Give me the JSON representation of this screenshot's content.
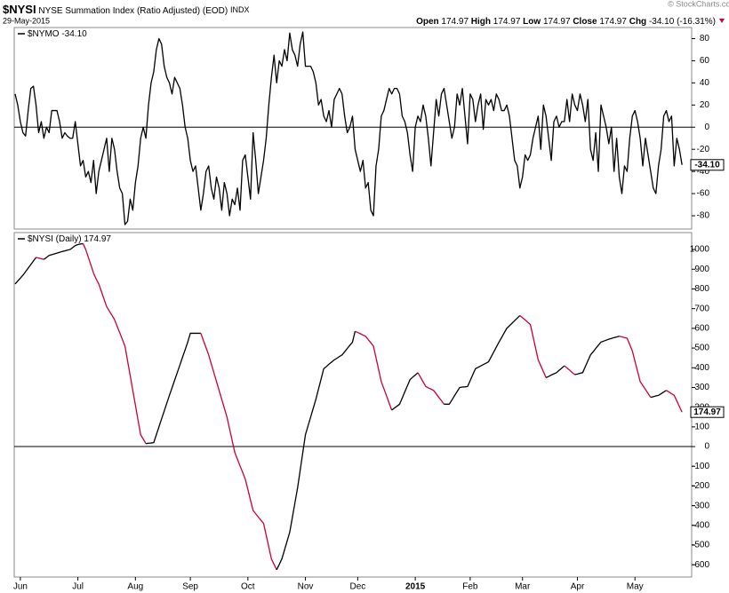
{
  "header": {
    "symbol": "$NYSI",
    "name": "NYSE Summation Index (Ratio Adjusted) (EOD)",
    "exchange": "INDX",
    "date": "29-May-2015",
    "watermark": "© StockCharts.com",
    "quote": [
      {
        "label": "Open",
        "value": "174.97"
      },
      {
        "label": "High",
        "value": "174.97"
      },
      {
        "label": "Low",
        "value": "174.97"
      },
      {
        "label": "Close",
        "value": "174.97"
      },
      {
        "label": "Chg",
        "value": "-34.10 (-16.31%)"
      }
    ]
  },
  "chart_data": [
    {
      "type": "line",
      "xlim": [
        0,
        258
      ],
      "ylim": [
        -92,
        90
      ],
      "yticks": [
        80,
        60,
        40,
        20,
        0,
        -20,
        -40,
        -60,
        -80
      ],
      "zero_line": true,
      "series": [
        {
          "name": "$NYMO",
          "color": "#000000",
          "last_value_label": "-34.10",
          "values": [
            30,
            20,
            5,
            -5,
            -8,
            15,
            35,
            37,
            20,
            -5,
            5,
            -10,
            0,
            -5,
            15,
            15,
            15,
            5,
            -10,
            -5,
            -8,
            -10,
            -10,
            5,
            -15,
            -35,
            -30,
            -45,
            -40,
            -50,
            -30,
            -60,
            -40,
            -30,
            -20,
            -10,
            -40,
            -10,
            -20,
            -40,
            -55,
            -60,
            -88,
            -85,
            -65,
            -75,
            -50,
            -35,
            -10,
            0,
            -10,
            20,
            40,
            50,
            70,
            80,
            75,
            55,
            45,
            40,
            30,
            45,
            40,
            35,
            20,
            0,
            -10,
            -30,
            -40,
            -35,
            -55,
            -75,
            -60,
            -40,
            -35,
            -55,
            -65,
            -45,
            -55,
            -75,
            -50,
            -60,
            -80,
            -65,
            -70,
            -55,
            -75,
            -30,
            -25,
            -45,
            -65,
            -5,
            -30,
            -60,
            -45,
            -30,
            -10,
            20,
            45,
            65,
            40,
            60,
            55,
            70,
            60,
            85,
            70,
            65,
            55,
            75,
            86,
            55,
            55,
            55,
            50,
            40,
            20,
            25,
            10,
            5,
            15,
            0,
            25,
            30,
            35,
            30,
            10,
            -5,
            0,
            10,
            -20,
            -30,
            -40,
            -30,
            -55,
            -50,
            -75,
            -80,
            -35,
            -20,
            10,
            15,
            25,
            35,
            30,
            35,
            35,
            30,
            10,
            5,
            -5,
            -25,
            -40,
            0,
            10,
            5,
            20,
            10,
            -10,
            -35,
            -5,
            25,
            10,
            30,
            35,
            20,
            5,
            -10,
            0,
            30,
            20,
            35,
            10,
            -15,
            30,
            25,
            5,
            20,
            30,
            -2,
            25,
            20,
            25,
            15,
            30,
            25,
            15,
            15,
            20,
            10,
            -10,
            -30,
            -35,
            -55,
            -45,
            -25,
            -30,
            -25,
            -10,
            0,
            10,
            -20,
            20,
            10,
            -10,
            -30,
            5,
            10,
            0,
            5,
            5,
            25,
            5,
            30,
            20,
            15,
            30,
            20,
            5,
            25,
            -20,
            -30,
            -5,
            -40,
            20,
            10,
            0,
            -15,
            0,
            -40,
            -10,
            -45,
            -60,
            -35,
            -40,
            -10,
            10,
            15,
            5,
            -10,
            -35,
            -10,
            -25,
            -40,
            -55,
            -60,
            -35,
            -20,
            10,
            15,
            5,
            10,
            -35,
            -10,
            -20,
            -34.1
          ]
        }
      ]
    },
    {
      "type": "line",
      "xlim": [
        0,
        258
      ],
      "ylim": [
        -662,
        1086
      ],
      "yticks": [
        1000,
        900,
        800,
        700,
        600,
        500,
        400,
        300,
        200,
        100,
        0,
        -100,
        -200,
        -300,
        -400,
        -500,
        -600
      ],
      "zero_line": true,
      "xticks": [
        {
          "value": 2,
          "label": "Jun"
        },
        {
          "value": 24,
          "label": "Jul"
        },
        {
          "value": 46,
          "label": "Aug"
        },
        {
          "value": 67,
          "label": "Sep"
        },
        {
          "value": 89,
          "label": "Oct"
        },
        {
          "value": 111,
          "label": "Nov"
        },
        {
          "value": 131,
          "label": "Dec"
        },
        {
          "value": 153,
          "label": "2015"
        },
        {
          "value": 174,
          "label": "Feb"
        },
        {
          "value": 194,
          "label": "Mar"
        },
        {
          "value": 215,
          "label": "Apr"
        },
        {
          "value": 237,
          "label": "May"
        }
      ],
      "series": [
        {
          "name": "$NYSI (Daily)",
          "color": "#000000",
          "down_color": "#cc0033",
          "last_value_label": "174.97",
          "values": [
            825,
            840,
            855,
            870,
            888,
            906,
            924,
            942,
            960,
            957,
            953,
            950,
            960,
            970,
            974,
            978,
            982,
            986,
            990,
            993,
            997,
            1000,
            1010,
            1020,
            1025,
            1028,
            1030,
            1000,
            960,
            920,
            880,
            850,
            825,
            787,
            748,
            710,
            688,
            667,
            645,
            611,
            578,
            544,
            510,
            435,
            360,
            285,
            210,
            135,
            60,
            38,
            15,
            17,
            18,
            20,
            60,
            100,
            140,
            180,
            220,
            260,
            298,
            337,
            375,
            414,
            453,
            491,
            530,
            575,
            575,
            575,
            575,
            575,
            538,
            502,
            465,
            420,
            375,
            330,
            285,
            240,
            195,
            150,
            90,
            30,
            -30,
            -64,
            -98,
            -131,
            -165,
            -218,
            -272,
            -325,
            -341,
            -358,
            -374,
            -390,
            -450,
            -510,
            -570,
            -598,
            -625,
            -598,
            -570,
            -525,
            -480,
            -435,
            -360,
            -285,
            -210,
            -120,
            -30,
            60,
            105,
            150,
            195,
            240,
            292,
            343,
            395,
            406,
            418,
            429,
            440,
            448,
            457,
            465,
            481,
            498,
            514,
            530,
            585,
            579,
            573,
            566,
            560,
            543,
            527,
            510,
            450,
            390,
            330,
            294,
            258,
            221,
            185,
            195,
            205,
            215,
            246,
            278,
            309,
            340,
            352,
            363,
            375,
            352,
            328,
            305,
            298,
            292,
            285,
            268,
            250,
            233,
            215,
            215,
            215,
            236,
            258,
            279,
            300,
            302,
            303,
            305,
            335,
            365,
            395,
            402,
            409,
            416,
            423,
            430,
            455,
            480,
            505,
            530,
            553,
            577,
            600,
            613,
            626,
            639,
            652,
            665,
            654,
            643,
            631,
            620,
            560,
            500,
            440,
            410,
            380,
            350,
            356,
            363,
            369,
            375,
            387,
            398,
            410,
            399,
            388,
            376,
            365,
            368,
            372,
            375,
            405,
            435,
            465,
            481,
            498,
            514,
            530,
            535,
            540,
            545,
            549,
            553,
            556,
            560,
            557,
            553,
            550,
            518,
            485,
            433,
            382,
            330,
            310,
            290,
            270,
            250,
            253,
            257,
            260,
            268,
            277,
            285,
            277,
            268,
            260,
            232,
            203,
            174.97
          ]
        }
      ]
    }
  ]
}
